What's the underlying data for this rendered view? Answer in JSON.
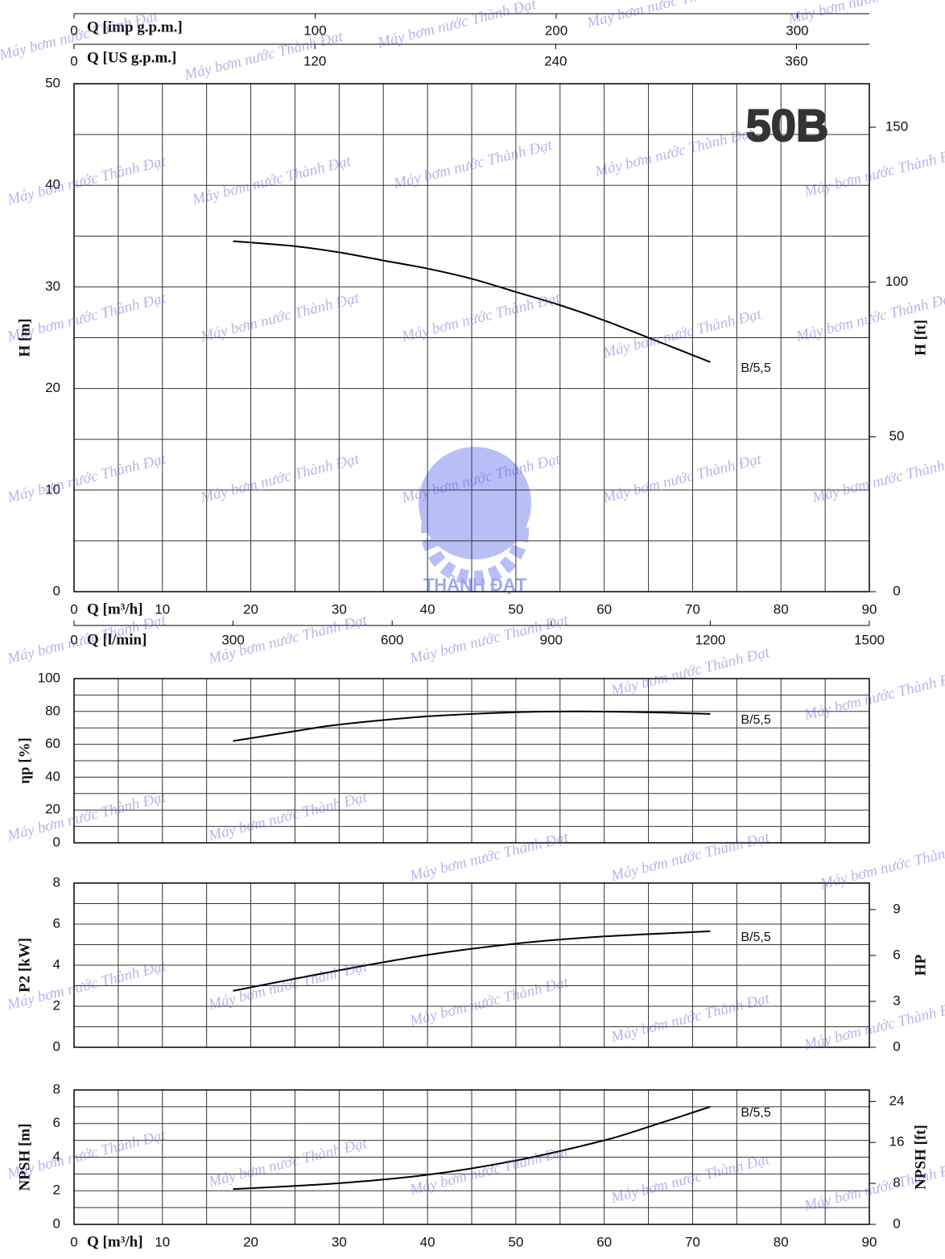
{
  "watermark": "Máy bơm nước Thành Đạt",
  "logo_text": "THÀNH ĐẠT",
  "chart_data": [
    {
      "type": "line",
      "title": "50B",
      "xlabel": "Q [m³/h]",
      "xlim": [
        0,
        90
      ],
      "xticks": [
        0,
        10,
        20,
        30,
        40,
        50,
        60,
        70,
        80,
        90
      ],
      "x2label": "Q [l/min]",
      "x2lim": [
        0,
        1500
      ],
      "x2ticks": [
        0,
        300,
        600,
        900,
        1200,
        1500
      ],
      "top_axes": [
        {
          "label": "Q [imp g.p.m.]",
          "lim": [
            0,
            329.9
          ],
          "ticks": [
            0,
            100,
            200,
            300
          ]
        },
        {
          "label": "Q [US g.p.m.]",
          "lim": [
            0,
            396.3
          ],
          "ticks": [
            0,
            120,
            240,
            360
          ]
        }
      ],
      "ylabel": "H [m]",
      "ylim": [
        0,
        50
      ],
      "yticks": [
        0,
        10,
        20,
        30,
        40,
        50
      ],
      "y2label": "H [ft]",
      "y2lim": [
        0,
        164.04
      ],
      "y2ticks": [
        0,
        50,
        100,
        150
      ],
      "grid": {
        "x_step": 5,
        "y_step": 5
      },
      "series": [
        {
          "name": "B/5,5",
          "color": "#000000",
          "x": [
            18,
            25,
            30,
            35,
            40,
            45,
            50,
            55,
            60,
            65,
            72
          ],
          "values": [
            34.5,
            34.0,
            33.4,
            32.6,
            31.8,
            30.8,
            29.5,
            28.2,
            26.7,
            25.0,
            22.6
          ]
        }
      ]
    },
    {
      "type": "line",
      "xlim": [
        0,
        90
      ],
      "ylabel": "ηp [%]",
      "ylim": [
        0,
        100
      ],
      "yticks": [
        0,
        20,
        40,
        60,
        80,
        100
      ],
      "grid": {
        "x_step": 5,
        "y_step": 10
      },
      "series": [
        {
          "name": "B/5,5",
          "color": "#000000",
          "x": [
            18,
            25,
            30,
            40,
            50,
            57,
            65,
            72
          ],
          "values": [
            62,
            68,
            72,
            77,
            79.5,
            80,
            79.5,
            78.5
          ]
        }
      ]
    },
    {
      "type": "line",
      "xlim": [
        0,
        90
      ],
      "ylabel": "P2 [kW]",
      "ylim": [
        0,
        8
      ],
      "yticks": [
        0,
        2,
        4,
        6,
        8
      ],
      "y2label": "HP",
      "y2lim": [
        0,
        10.73
      ],
      "y2ticks": [
        0,
        3,
        6,
        9
      ],
      "grid": {
        "x_step": 5,
        "y_step": 1
      },
      "series": [
        {
          "name": "B/5,5",
          "color": "#000000",
          "x": [
            18,
            30,
            40,
            50,
            60,
            72
          ],
          "values": [
            2.75,
            3.75,
            4.5,
            5.05,
            5.4,
            5.65
          ]
        }
      ]
    },
    {
      "type": "line",
      "xlabel": "Q [m³/h]",
      "xlim": [
        0,
        90
      ],
      "xticks": [
        0,
        10,
        20,
        30,
        40,
        50,
        60,
        70,
        80,
        90
      ],
      "ylabel": "NPSH [m]",
      "ylim": [
        0,
        8
      ],
      "yticks": [
        0,
        2,
        4,
        6,
        8
      ],
      "y2label": "NPSH [ft]",
      "y2lim": [
        0,
        26.25
      ],
      "y2ticks": [
        0,
        8,
        16,
        24
      ],
      "grid": {
        "x_step": 5,
        "y_step": 1
      },
      "series": [
        {
          "name": "B/5,5",
          "color": "#000000",
          "x": [
            18,
            30,
            40,
            50,
            60,
            65,
            72
          ],
          "values": [
            2.1,
            2.45,
            2.95,
            3.8,
            5.0,
            5.8,
            7.0
          ]
        }
      ]
    }
  ]
}
